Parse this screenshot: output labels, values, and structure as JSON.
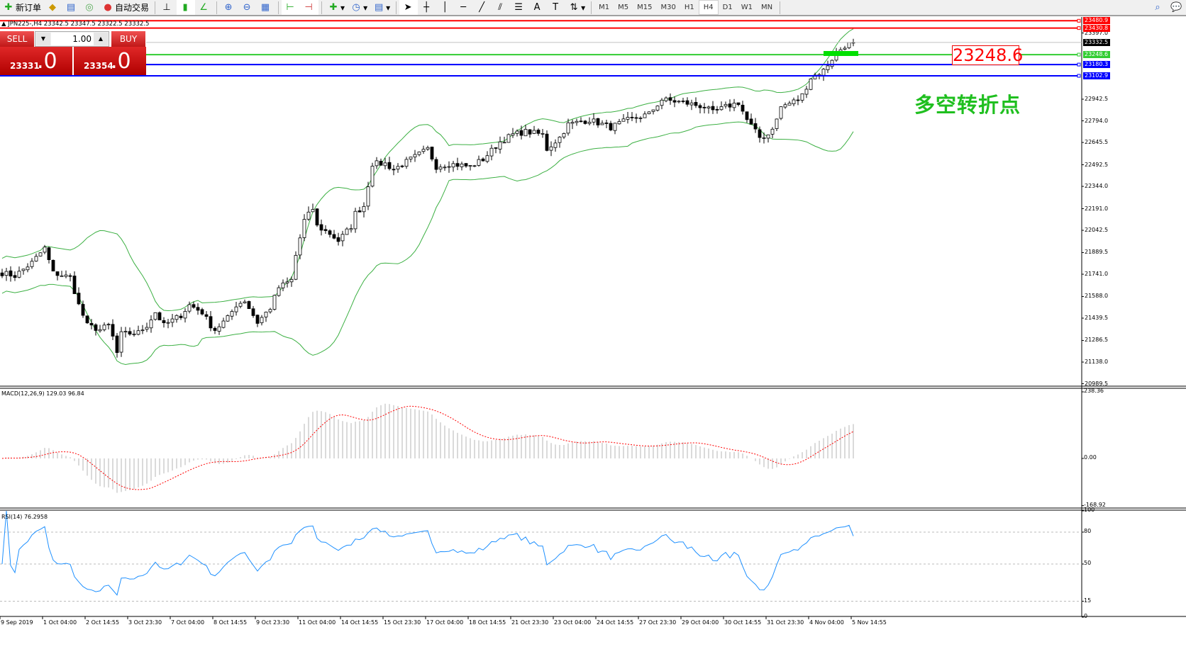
{
  "toolbar": {
    "new_order": "新订单",
    "auto_trading": "自动交易",
    "icons": [
      "new-order-icon",
      "history-center-icon",
      "market-watch-icon",
      "signals-icon",
      "auto-trading-icon",
      "bar-chart-icon",
      "candlestick-icon",
      "line-chart-icon",
      "zoom-in-icon",
      "zoom-out-icon",
      "tile-windows-icon",
      "autoscroll-icon",
      "chart-shift-icon",
      "indicators-icon",
      "periods-icon",
      "templates-icon",
      "cursor-icon",
      "crosshair-icon",
      "vertical-line-icon",
      "horizontal-line-icon",
      "trendline-icon",
      "equidistant-channel-icon",
      "fibonacci-icon",
      "text-icon",
      "text-label-icon",
      "arrows-icon",
      "search-icon",
      "chat-icon"
    ],
    "timeframes": [
      "M1",
      "M5",
      "M15",
      "M30",
      "H1",
      "H4",
      "D1",
      "W1",
      "MN"
    ],
    "active_timeframe": "H4"
  },
  "chart": {
    "header": "JPN225-,H4  23342.5 23347.5 23322.5 23332.5",
    "symbol": "JPN225-",
    "period": "H4",
    "ohlc": {
      "open": 23342.5,
      "high": 23347.5,
      "low": 23322.5,
      "close": 23332.5
    },
    "price_ticks": [
      "23397.0",
      "22942.5",
      "22794.0",
      "22645.5",
      "22492.5",
      "22344.0",
      "22191.0",
      "22042.5",
      "21889.5",
      "21741.0",
      "21588.0",
      "21439.5",
      "21286.5",
      "21138.0",
      "20989.5"
    ],
    "current_price": "23332.5",
    "levels": [
      {
        "price": "23480.9",
        "color": "#ff0000"
      },
      {
        "price": "23430.8",
        "color": "#ff0000"
      },
      {
        "price": "23248.6",
        "color": "#32cd32"
      },
      {
        "price": "23180.3",
        "color": "#0000ff"
      },
      {
        "price": "23102.9",
        "color": "#0000ff"
      }
    ],
    "signal_price": "23248.6",
    "annotation": "多空转折点",
    "close_path": [
      [
        0,
        21750
      ],
      [
        3,
        21730
      ],
      [
        7,
        21820
      ],
      [
        10,
        21920
      ],
      [
        12,
        21750
      ],
      [
        16,
        21720
      ],
      [
        18,
        21530
      ],
      [
        20,
        21390
      ],
      [
        23,
        21360
      ],
      [
        25,
        21390
      ],
      [
        26,
        21310
      ],
      [
        27,
        21200
      ],
      [
        28,
        21330
      ],
      [
        32,
        21340
      ],
      [
        34,
        21390
      ],
      [
        36,
        21480
      ],
      [
        38,
        21390
      ],
      [
        42,
        21460
      ],
      [
        44,
        21530
      ],
      [
        47,
        21480
      ],
      [
        49,
        21390
      ],
      [
        50,
        21360
      ],
      [
        53,
        21440
      ],
      [
        55,
        21530
      ],
      [
        57,
        21560
      ],
      [
        60,
        21410
      ],
      [
        63,
        21510
      ],
      [
        65,
        21650
      ],
      [
        68,
        21700
      ],
      [
        69,
        21870
      ],
      [
        71,
        22110
      ],
      [
        73,
        22190
      ],
      [
        74,
        22070
      ],
      [
        77,
        22020
      ],
      [
        79,
        21970
      ],
      [
        82,
        22070
      ],
      [
        83,
        22160
      ],
      [
        85,
        22210
      ],
      [
        87,
        22500
      ],
      [
        90,
        22500
      ],
      [
        92,
        22460
      ],
      [
        96,
        22530
      ],
      [
        100,
        22600
      ],
      [
        102,
        22480
      ],
      [
        105,
        22500
      ],
      [
        110,
        22480
      ],
      [
        113,
        22530
      ],
      [
        117,
        22650
      ],
      [
        120,
        22700
      ],
      [
        123,
        22720
      ],
      [
        127,
        22700
      ],
      [
        128,
        22600
      ],
      [
        131,
        22680
      ],
      [
        133,
        22770
      ],
      [
        138,
        22800
      ],
      [
        143,
        22750
      ],
      [
        147,
        22800
      ],
      [
        152,
        22840
      ],
      [
        155,
        22940
      ],
      [
        160,
        22920
      ],
      [
        165,
        22890
      ],
      [
        167,
        22850
      ],
      [
        170,
        22890
      ],
      [
        173,
        22920
      ],
      [
        175,
        22800
      ],
      [
        178,
        22680
      ],
      [
        180,
        22700
      ],
      [
        182,
        22800
      ],
      [
        183,
        22890
      ],
      [
        187,
        22940
      ],
      [
        188,
        22970
      ],
      [
        190,
        23090
      ],
      [
        193,
        23140
      ],
      [
        196,
        23260
      ],
      [
        198,
        23310
      ],
      [
        200,
        23332.5
      ]
    ],
    "time_labels": [
      "9 Sep 2019",
      "1 Oct 04:00",
      "2 Oct 14:55",
      "3 Oct 23:30",
      "7 Oct 04:00",
      "8 Oct 14:55",
      "9 Oct 23:30",
      "11 Oct 04:00",
      "14 Oct 14:55",
      "15 Oct 23:30",
      "17 Oct 04:00",
      "18 Oct 14:55",
      "21 Oct 23:30",
      "23 Oct 04:00",
      "24 Oct 14:55",
      "27 Oct 23:30",
      "29 Oct 04:00",
      "30 Oct 14:55",
      "31 Oct 23:30",
      "4 Nov 04:00",
      "5 Nov 14:55"
    ]
  },
  "trade_panel": {
    "sell_label": "SELL",
    "buy_label": "BUY",
    "lot": "1.00",
    "sell_price_main": "23331",
    "sell_price_big": ".0",
    "buy_price_main": "23354",
    "buy_price_big": ".0",
    "color": "#d01c1c"
  },
  "macd": {
    "header": "MACD(12,26,9) 129.03 96.84",
    "ticks": [
      "238.36",
      "0.00",
      "-168.92"
    ],
    "range": [
      -168.92,
      238.36
    ],
    "main": 129.03,
    "signal": 96.84
  },
  "rsi": {
    "header": "RSI(14) 76.2958",
    "ticks": [
      "100",
      "80",
      "50",
      "15",
      "0"
    ],
    "levels": [
      80,
      50,
      15
    ],
    "value": 76.2958
  },
  "colors": {
    "bands": "#3cb043",
    "macd_hist": "#b4b4b4",
    "macd_signal": "#ff0000",
    "rsi": "#1e90ff"
  }
}
